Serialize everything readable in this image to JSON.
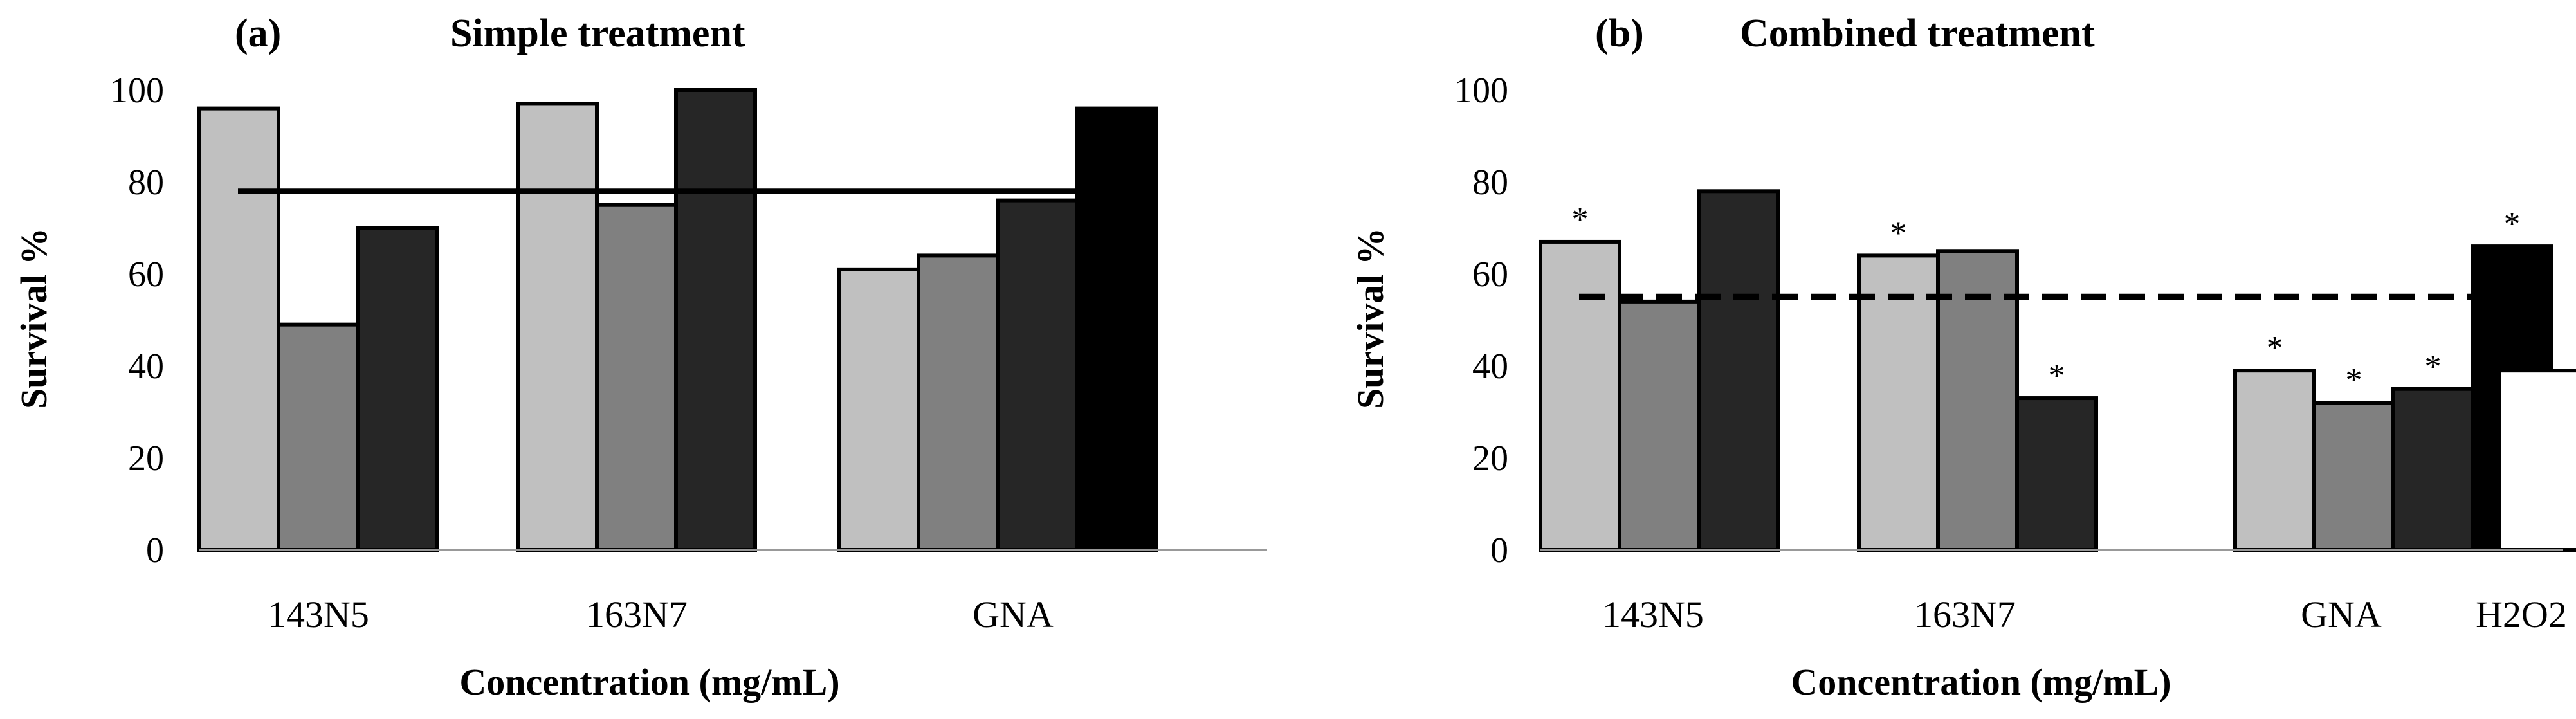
{
  "chart_data": [
    {
      "type": "bar",
      "panel_label": "(a)",
      "title": "Simple treatment",
      "xlabel": "Concentration (mg/mL)",
      "ylabel": "Survival %",
      "ylim": [
        0,
        100
      ],
      "yticks": [
        "0",
        "20",
        "40",
        "60",
        "80",
        "100"
      ],
      "grid": false,
      "groups": [
        {
          "label": "143N5",
          "bars": [
            {
              "value": 96,
              "color": "#c0c0c0",
              "star": false
            },
            {
              "value": 49,
              "color": "#808080",
              "star": false
            },
            {
              "value": 70,
              "color": "#262626",
              "star": false
            }
          ]
        },
        {
          "label": "163N7",
          "bars": [
            {
              "value": 97,
              "color": "#c0c0c0",
              "star": false
            },
            {
              "value": 75,
              "color": "#808080",
              "star": false
            },
            {
              "value": 100,
              "color": "#262626",
              "star": false
            }
          ]
        },
        {
          "label": "GNA",
          "bars": [
            {
              "value": 61,
              "color": "#c0c0c0",
              "star": false
            },
            {
              "value": 64,
              "color": "#808080",
              "star": false
            },
            {
              "value": 76,
              "color": "#262626",
              "star": false
            },
            {
              "value": 96,
              "color": "#000000",
              "star": false
            }
          ]
        }
      ],
      "reference_line": {
        "value": 78,
        "style": "solid"
      }
    },
    {
      "type": "bar",
      "panel_label": "(b)",
      "title": "Combined treatment",
      "xlabel": "Concentration (mg/mL)",
      "ylabel": "Survival %",
      "ylim": [
        0,
        100
      ],
      "yticks": [
        "0",
        "20",
        "40",
        "60",
        "80",
        "100"
      ],
      "grid": false,
      "star_symbol": "*",
      "groups": [
        {
          "label": "143N5",
          "bars": [
            {
              "value": 67,
              "color": "#c0c0c0",
              "star": true
            },
            {
              "value": 54,
              "color": "#808080",
              "star": false
            },
            {
              "value": 78,
              "color": "#262626",
              "star": false
            }
          ]
        },
        {
          "label": "163N7",
          "bars": [
            {
              "value": 64,
              "color": "#c0c0c0",
              "star": true
            },
            {
              "value": 65,
              "color": "#808080",
              "star": false
            },
            {
              "value": 33,
              "color": "#262626",
              "star": true
            }
          ]
        },
        {
          "label": "GNA",
          "bars": [
            {
              "value": 39,
              "color": "#c0c0c0",
              "star": true
            },
            {
              "value": 32,
              "color": "#808080",
              "star": true
            },
            {
              "value": 35,
              "color": "#262626",
              "star": true
            },
            {
              "value": 66,
              "color": "#000000",
              "star": true
            }
          ]
        },
        {
          "label": "H2O2",
          "bars": [
            {
              "value": 39,
              "color": "#ffffff",
              "star": false
            }
          ]
        }
      ],
      "reference_line": {
        "value": 55,
        "style": "dashed"
      }
    }
  ]
}
